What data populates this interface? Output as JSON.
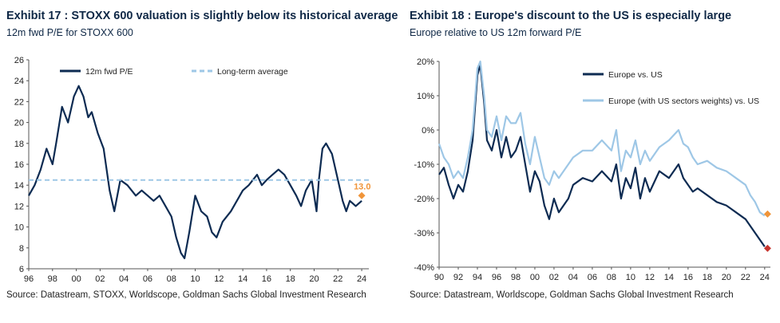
{
  "colors": {
    "navy": "#0d2b52",
    "light_blue": "#9ec7e6",
    "orange_marker": "#f0953a",
    "red_marker": "#c7352f"
  },
  "left": {
    "title": "Exhibit 17 : STOXX 600 valuation is slightly below its historical average",
    "subtitle": "12m fwd P/E for STOXX 600",
    "source": "Source: Datastream, STOXX, Worldscope, Goldman Sachs Global Investment Research",
    "annotation": "13.0"
  },
  "right": {
    "title": "Exhibit 18 : Europe's discount to the US is especially large",
    "subtitle": "Europe relative to US 12m forward P/E",
    "source": "Source: Datastream, Worldscope, Goldman Sachs Global Investment Research"
  },
  "chart_data": [
    {
      "type": "line",
      "xlim": [
        1996,
        2024.6
      ],
      "ylim": [
        6,
        26
      ],
      "x_tick_values": [
        1996,
        1998,
        2000,
        2002,
        2004,
        2006,
        2008,
        2010,
        2012,
        2014,
        2016,
        2018,
        2020,
        2022,
        2024
      ],
      "x_tick_labels": [
        "96",
        "98",
        "00",
        "02",
        "04",
        "06",
        "08",
        "10",
        "12",
        "14",
        "16",
        "18",
        "20",
        "22",
        "24"
      ],
      "y_tick_values": [
        6,
        8,
        10,
        12,
        14,
        16,
        18,
        20,
        22,
        24,
        26
      ],
      "y_tick_labels": [
        "6",
        "8",
        "10",
        "12",
        "14",
        "16",
        "18",
        "20",
        "22",
        "24",
        "26"
      ],
      "legend": "top-left, inside",
      "grid": false,
      "series": [
        {
          "name": "12m fwd P/E",
          "color": "#0d2b52",
          "x": [
            1996,
            1996.5,
            1997,
            1997.5,
            1998,
            1998.3,
            1998.8,
            1999.3,
            1999.8,
            2000.2,
            2000.6,
            2001,
            2001.3,
            2001.8,
            2002.3,
            2002.8,
            2003.2,
            2003.7,
            2004.3,
            2005,
            2005.5,
            2006,
            2006.5,
            2007,
            2007.5,
            2008,
            2008.4,
            2008.8,
            2009.1,
            2009.5,
            2010,
            2010.5,
            2011,
            2011.4,
            2011.8,
            2012.3,
            2013,
            2013.5,
            2014,
            2014.5,
            2015.2,
            2015.6,
            2016,
            2016.5,
            2017,
            2017.5,
            2018,
            2018.5,
            2018.9,
            2019.3,
            2019.8,
            2020.2,
            2020.4,
            2020.7,
            2021,
            2021.5,
            2022,
            2022.4,
            2022.7,
            2023,
            2023.5,
            2024
          ],
          "y": [
            13.0,
            14.0,
            15.5,
            17.5,
            16.0,
            18.0,
            21.5,
            20.0,
            22.5,
            23.5,
            22.5,
            20.5,
            21.0,
            19.0,
            17.5,
            13.5,
            11.5,
            14.5,
            14.0,
            13.0,
            13.5,
            13.0,
            12.5,
            13.0,
            12.0,
            11.0,
            9.0,
            7.5,
            7.0,
            9.5,
            13.0,
            11.5,
            11.0,
            9.5,
            9.0,
            10.5,
            11.5,
            12.5,
            13.5,
            14.0,
            15.0,
            14.0,
            14.5,
            15.0,
            15.5,
            15.0,
            14.0,
            13.0,
            12.0,
            13.5,
            14.5,
            11.5,
            14.5,
            17.5,
            18.0,
            17.0,
            14.5,
            12.5,
            11.5,
            12.5,
            12.0,
            12.5
          ]
        },
        {
          "name": "Long-term average",
          "color": "#9ec7e6",
          "dashed": true,
          "x": [
            1996,
            2024.6
          ],
          "y": [
            14.5,
            14.5
          ]
        },
        {
          "name": "Current",
          "color": "#f0953a",
          "marker": "diamond",
          "x": [
            2024
          ],
          "y": [
            13.0
          ],
          "label": "13.0"
        }
      ]
    },
    {
      "type": "line",
      "xlim": [
        1990,
        2024.6
      ],
      "ylim": [
        -40,
        20
      ],
      "x_tick_values": [
        1990,
        1992,
        1994,
        1996,
        1998,
        2000,
        2002,
        2004,
        2006,
        2008,
        2010,
        2012,
        2014,
        2016,
        2018,
        2020,
        2022,
        2024
      ],
      "x_tick_labels": [
        "90",
        "92",
        "94",
        "96",
        "98",
        "00",
        "02",
        "04",
        "06",
        "08",
        "10",
        "12",
        "14",
        "16",
        "18",
        "20",
        "22",
        "24"
      ],
      "y_tick_values": [
        -40,
        -30,
        -20,
        -10,
        0,
        10,
        20
      ],
      "y_tick_labels": [
        "-40%",
        "-30%",
        "-20%",
        "-10%",
        "0%",
        "10%",
        "20%"
      ],
      "legend": "top-right, inside",
      "grid": false,
      "series": [
        {
          "name": "Europe vs. US",
          "color": "#0d2b52",
          "x": [
            1990,
            1990.5,
            1991,
            1991.5,
            1992,
            1992.5,
            1993,
            1993.5,
            1994,
            1994.3,
            1994.7,
            1995,
            1995.5,
            1996,
            1996.5,
            1997,
            1997.5,
            1998,
            1998.5,
            1999,
            1999.5,
            2000,
            2000.5,
            2001,
            2001.5,
            2002,
            2002.5,
            2003,
            2003.5,
            2004,
            2005,
            2006,
            2007,
            2008,
            2008.5,
            2009,
            2009.5,
            2010,
            2010.5,
            2011,
            2011.5,
            2012,
            2013,
            2014,
            2015,
            2015.5,
            2016,
            2016.5,
            2017,
            2018,
            2019,
            2020,
            2020.5,
            2021,
            2022,
            2022.5,
            2023,
            2023.5,
            2024
          ],
          "y": [
            -13,
            -11,
            -16,
            -20,
            -16,
            -18,
            -12,
            -3,
            16,
            19,
            8,
            -3,
            -6,
            0,
            -8,
            -2,
            -8,
            -6,
            -2,
            -10,
            -18,
            -12,
            -15,
            -22,
            -26,
            -20,
            -24,
            -22,
            -20,
            -16,
            -14,
            -15,
            -12,
            -15,
            -10,
            -20,
            -14,
            -17,
            -11,
            -20,
            -14,
            -18,
            -12,
            -14,
            -10,
            -14,
            -16,
            -18,
            -17,
            -19,
            -21,
            -22,
            -23,
            -24,
            -26,
            -28,
            -30,
            -32,
            -34
          ]
        },
        {
          "name": "Europe (with US sectors weights) vs. US",
          "color": "#9ec7e6",
          "x": [
            1990,
            1990.5,
            1991,
            1991.5,
            1992,
            1992.5,
            1993,
            1993.5,
            1994,
            1994.3,
            1994.7,
            1995,
            1995.5,
            1996,
            1996.5,
            1997,
            1997.5,
            1998,
            1998.5,
            1999,
            1999.5,
            2000,
            2000.5,
            2001,
            2001.5,
            2002,
            2002.5,
            2003,
            2003.5,
            2004,
            2005,
            2006,
            2007,
            2008,
            2008.5,
            2009,
            2009.5,
            2010,
            2010.5,
            2011,
            2011.5,
            2012,
            2013,
            2014,
            2015,
            2015.5,
            2016,
            2016.5,
            2017,
            2018,
            2019,
            2020,
            2020.5,
            2021,
            2022,
            2022.5,
            2023,
            2023.5,
            2024
          ],
          "y": [
            -4,
            -8,
            -10,
            -14,
            -12,
            -14,
            -8,
            0,
            18,
            20,
            10,
            0,
            -2,
            4,
            -3,
            4,
            2,
            2,
            5,
            -4,
            -10,
            -2,
            -8,
            -14,
            -16,
            -12,
            -14,
            -12,
            -10,
            -8,
            -6,
            -6,
            -3,
            -6,
            0,
            -12,
            -6,
            -8,
            -3,
            -10,
            -6,
            -9,
            -5,
            -3,
            0,
            -4,
            -5,
            -8,
            -10,
            -9,
            -11,
            -12,
            -13,
            -14,
            -16,
            -19,
            -21,
            -24,
            -25
          ]
        },
        {
          "name": "Europe (with US sectors weights) vs. US - current",
          "color": "#f0953a",
          "marker": "diamond",
          "x": [
            2024.3
          ],
          "y": [
            -24.5
          ]
        },
        {
          "name": "Europe vs. US - current",
          "color": "#c7352f",
          "marker": "diamond",
          "x": [
            2024.3
          ],
          "y": [
            -34.5
          ]
        }
      ]
    }
  ]
}
